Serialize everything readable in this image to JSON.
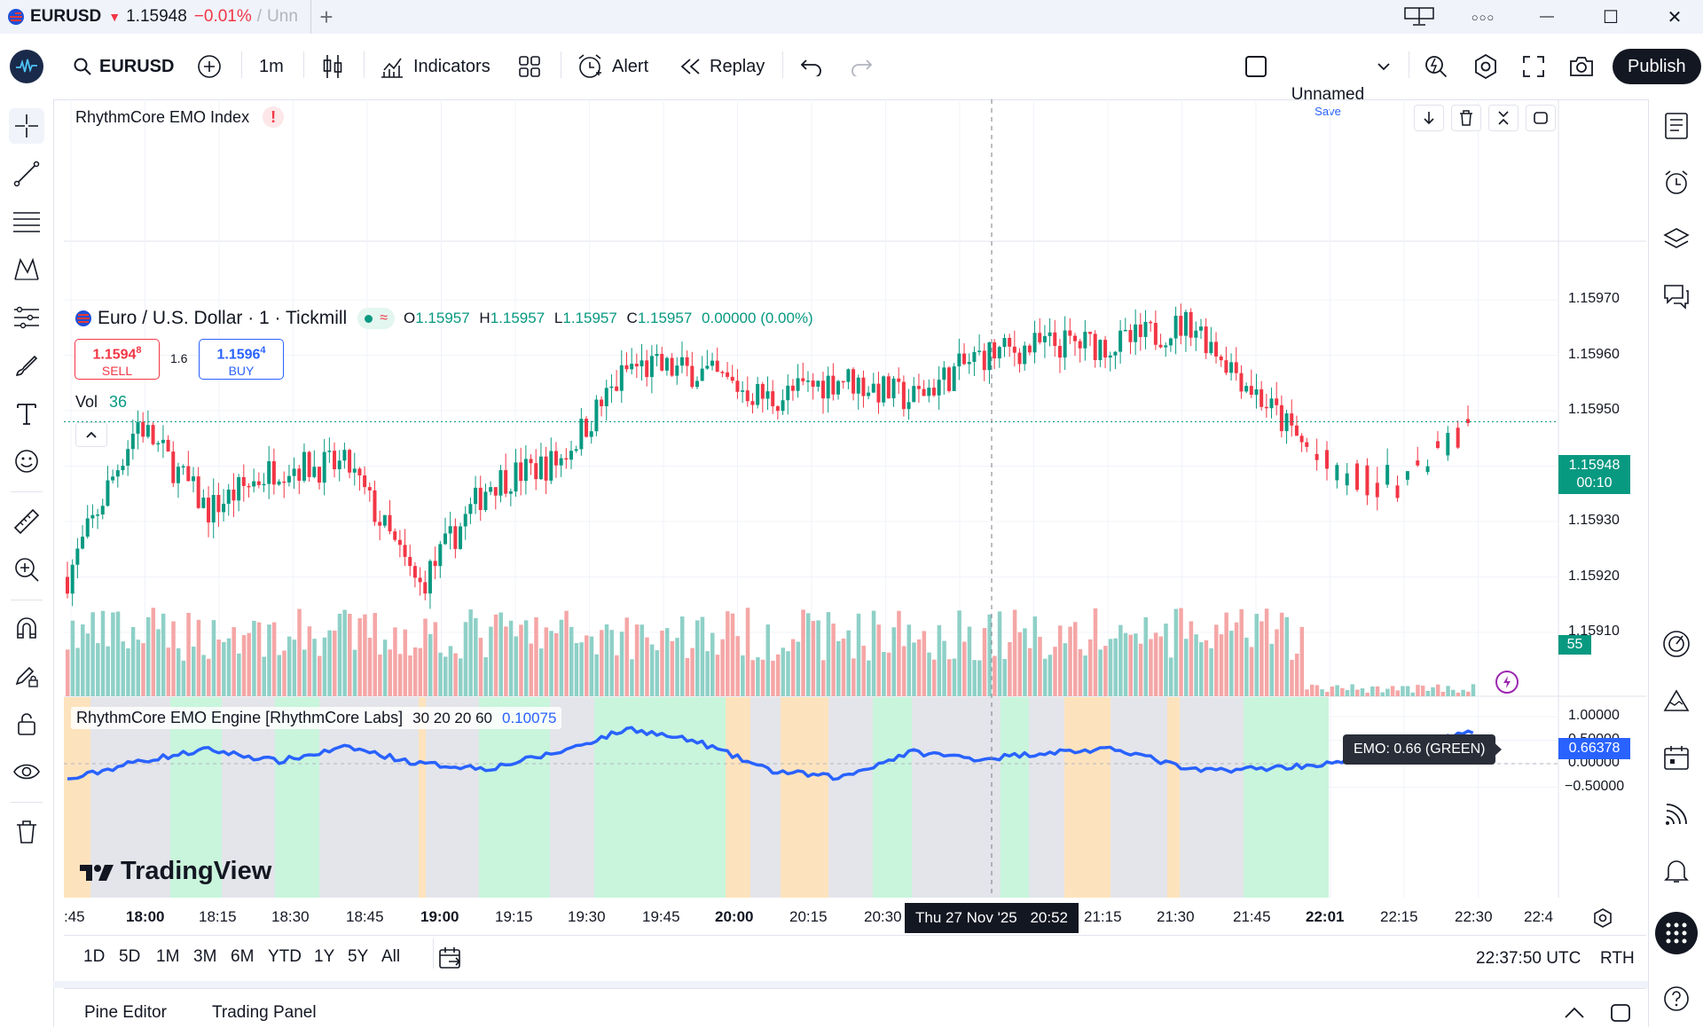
{
  "titlebar": {
    "symbol": "EURUSD",
    "arrow": "▼",
    "price": "1.15948",
    "change": "−0.01%",
    "slash": "/",
    "layout_name": "Unn",
    "new_tab": "+",
    "menu_dots": "○○○",
    "min": "—",
    "max": "☐",
    "close": "✕"
  },
  "toolbar": {
    "search_symbol": "EURUSD",
    "interval": "1m",
    "indicators": "Indicators",
    "alert": "Alert",
    "replay": "Replay",
    "layout_name": "Unnamed",
    "layout_save": "Save",
    "publish": "Publish"
  },
  "emo_index": {
    "title": "RhythmCore EMO Index",
    "warning": "!"
  },
  "main_legend": {
    "symbol_title": "Euro / U.S. Dollar · 1 · Tickmill",
    "o_label": "O",
    "o": "1.15957",
    "h_label": "H",
    "h": "1.15957",
    "l_label": "L",
    "l": "1.15957",
    "c_label": "C",
    "c": "1.15957",
    "change": "0.00000 (0.00%)",
    "sell_price_main": "1.1594",
    "sell_price_sup": "8",
    "sell_label": "SELL",
    "spread": "1.6",
    "buy_price_main": "1.1596",
    "buy_price_sup": "4",
    "buy_label": "BUY",
    "vol_label": "Vol",
    "vol_value": "36"
  },
  "price_axis": {
    "ticks": [
      "1.15970",
      "1.15960",
      "1.15950",
      "1.15940",
      "1.15930",
      "1.15920",
      "1.15910"
    ],
    "last_price": "1.15948",
    "countdown": "00:10",
    "vol_badge": "55"
  },
  "emo_engine": {
    "title": "RhythmCore EMO Engine [RhythmCore Labs]",
    "params": "30 20 20 60",
    "value": "0.10075",
    "tooltip": "EMO: 0.66 (GREEN)",
    "last_value": "0.66378",
    "axis_ticks": [
      "1.00000",
      "0.50000",
      "0.00000",
      "−0.50000"
    ]
  },
  "watermark": "TradingView",
  "time_axis": {
    "labels": [
      ":45",
      "18:00",
      "18:15",
      "18:30",
      "18:45",
      "19:00",
      "19:15",
      "19:30",
      "19:45",
      "20:00",
      "20:15",
      "20:30",
      "21:15",
      "21:30",
      "21:45",
      "22:01",
      "22:15",
      "22:30",
      "22:4"
    ],
    "crosshair_date": "Thu 27 Nov '25",
    "crosshair_time": "20:52"
  },
  "bottom_bar": {
    "ranges": [
      "1D",
      "5D",
      "1M",
      "3M",
      "6M",
      "YTD",
      "1Y",
      "5Y",
      "All"
    ],
    "clock": "22:37:50 UTC",
    "session": "RTH"
  },
  "footer": {
    "pine_editor": "Pine Editor",
    "trading_panel": "Trading Panel"
  },
  "colors": {
    "up": "#089981",
    "down": "#f23645",
    "vol_up": "#8ed0c7",
    "vol_down": "#f5a6a6",
    "emo_line": "#2962ff",
    "bg_green": "#c8f5dc",
    "bg_orange": "#fde3bd",
    "bg_grey": "#e4e5ea"
  },
  "chart_data": {
    "type": "candlestick",
    "symbol": "Euro / U.S. Dollar",
    "interval": "1",
    "ylim": [
      1.15905,
      1.15975
    ],
    "closes_approx": [
      {
        "time": "17:45",
        "close": 1.1592
      },
      {
        "time": "18:00",
        "close": 1.15948
      },
      {
        "time": "18:15",
        "close": 1.15932
      },
      {
        "time": "18:30",
        "close": 1.1594
      },
      {
        "time": "18:45",
        "close": 1.1594
      },
      {
        "time": "19:00",
        "close": 1.15918
      },
      {
        "time": "19:15",
        "close": 1.15937
      },
      {
        "time": "19:30",
        "close": 1.15941
      },
      {
        "time": "19:45",
        "close": 1.15958
      },
      {
        "time": "20:00",
        "close": 1.15957
      },
      {
        "time": "20:15",
        "close": 1.15952
      },
      {
        "time": "20:30",
        "close": 1.15956
      },
      {
        "time": "20:45",
        "close": 1.15952
      },
      {
        "time": "21:00",
        "close": 1.1596
      },
      {
        "time": "21:15",
        "close": 1.15962
      },
      {
        "time": "21:30",
        "close": 1.15962
      },
      {
        "time": "21:45",
        "close": 1.15966
      },
      {
        "time": "22:00",
        "close": 1.15952
      },
      {
        "time": "22:15",
        "close": 1.15938
      },
      {
        "time": "22:30",
        "close": 1.15937
      },
      {
        "time": "22:37",
        "close": 1.15948
      }
    ],
    "emo_ylim": [
      -0.75,
      1.1
    ],
    "emo_approx": [
      {
        "time": "17:45",
        "value": -0.35
      },
      {
        "time": "18:00",
        "value": 0.05
      },
      {
        "time": "18:15",
        "value": 0.3
      },
      {
        "time": "18:30",
        "value": 0.05
      },
      {
        "time": "18:45",
        "value": 0.35
      },
      {
        "time": "19:00",
        "value": 0.0
      },
      {
        "time": "19:15",
        "value": -0.1
      },
      {
        "time": "19:30",
        "value": 0.25
      },
      {
        "time": "19:45",
        "value": 0.75
      },
      {
        "time": "20:00",
        "value": 0.45
      },
      {
        "time": "20:15",
        "value": -0.15
      },
      {
        "time": "20:30",
        "value": -0.3
      },
      {
        "time": "20:45",
        "value": 0.25
      },
      {
        "time": "21:00",
        "value": 0.1
      },
      {
        "time": "21:15",
        "value": 0.25
      },
      {
        "time": "21:30",
        "value": 0.3
      },
      {
        "time": "21:45",
        "value": -0.15
      },
      {
        "time": "22:00",
        "value": -0.1
      },
      {
        "time": "22:15",
        "value": 0.0
      },
      {
        "time": "22:30",
        "value": 0.35
      },
      {
        "time": "22:37",
        "value": 0.66
      }
    ]
  }
}
